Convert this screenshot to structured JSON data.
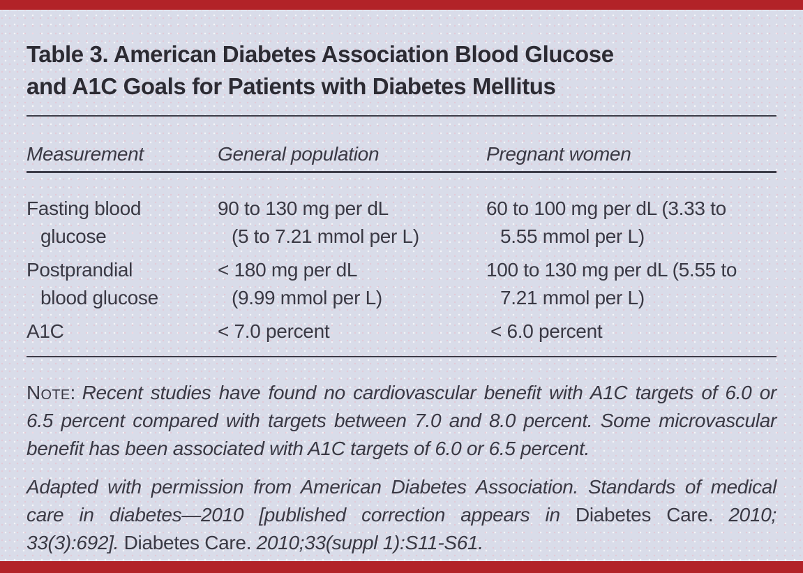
{
  "colors": {
    "accent_red": "#b22328",
    "background": "#d9dce9",
    "text": "#3a3944"
  },
  "table": {
    "title": [
      "Table 3. American Diabetes Association Blood Glucose",
      "and A1C Goals for Patients with Diabetes Mellitus"
    ],
    "columns": {
      "measurement": "Measurement",
      "general": "General population",
      "pregnant": "Pregnant women"
    },
    "rows": [
      {
        "measurement": [
          "Fasting blood",
          "glucose"
        ],
        "general": [
          "90 to 130 mg per dL",
          "(5 to 7.21 mmol per L)"
        ],
        "pregnant": [
          "60 to 100 mg per dL (3.33 to",
          "5.55 mmol per L)"
        ]
      },
      {
        "measurement": [
          "Postprandial",
          "blood glucose"
        ],
        "general": [
          "< 180 mg per dL",
          "(9.99 mmol per L)"
        ],
        "pregnant": [
          "100 to 130 mg per dL (5.55 to",
          "7.21 mmol per L)"
        ]
      },
      {
        "measurement": [
          "A1C"
        ],
        "general": [
          "< 7.0 percent"
        ],
        "pregnant": [
          "< 6.0 percent"
        ]
      }
    ]
  },
  "note": {
    "label": "Note:",
    "text": "Recent studies have found no cardiovascular benefit with A1C targets of 6.0 or 6.5 percent compared with targets between 7.0 and 8.0 percent. Some microvascular benefit has been associated with A1C targets of 6.0 or 6.5 percent."
  },
  "citation": {
    "part1_italic": "Adapted with permission from American Diabetes Association. Standards of medi­cal care in diabetes—2010 [published correction appears in ",
    "part2_roman": "Diabetes Care. ",
    "part3_italic": "2010; 33(3):692]. ",
    "part4_roman": "Diabetes Care. ",
    "part5_italic": "2010;33(suppl 1):S11-S61."
  }
}
